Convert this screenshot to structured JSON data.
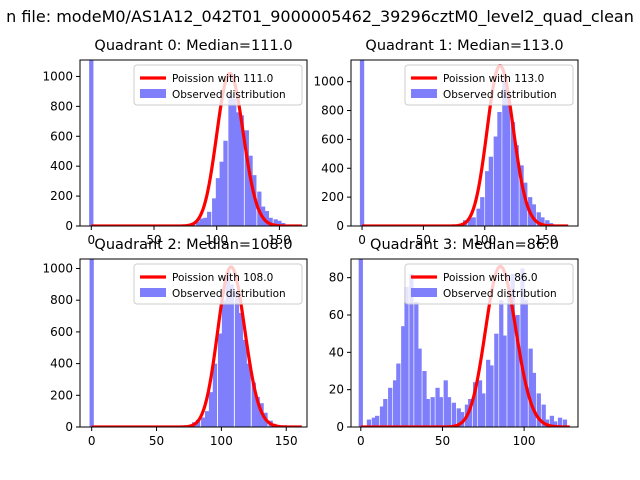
{
  "figure": {
    "suptitle": "n file: modeM0/AS1A12_042T01_9000005462_39296cztM0_level2_quad_clean"
  },
  "colors": {
    "hist": "#7f7ffc",
    "poisson": "#ff0000",
    "axes": "#000000"
  },
  "chart_data": [
    {
      "type": "bar",
      "title": "Quadrant 0: Median=111.0",
      "xlim": [
        -9,
        172
      ],
      "ylim": [
        0,
        1110
      ],
      "xticks": [
        0,
        50,
        100,
        150
      ],
      "yticks": [
        0,
        200,
        400,
        600,
        800,
        1000
      ],
      "legend": {
        "position": "top-right",
        "line_label": "Poission with 111.0",
        "bar_label": "Observed distribution"
      },
      "bin_width": 3.4,
      "bins": [
        {
          "x": 0,
          "y": 1110
        },
        {
          "x": 75,
          "y": 5
        },
        {
          "x": 78,
          "y": 8
        },
        {
          "x": 81,
          "y": 12
        },
        {
          "x": 85,
          "y": 30
        },
        {
          "x": 88,
          "y": 50
        },
        {
          "x": 91,
          "y": 55
        },
        {
          "x": 94,
          "y": 95
        },
        {
          "x": 98,
          "y": 185
        },
        {
          "x": 101,
          "y": 320
        },
        {
          "x": 104,
          "y": 430
        },
        {
          "x": 107,
          "y": 570
        },
        {
          "x": 111,
          "y": 880
        },
        {
          "x": 114,
          "y": 850
        },
        {
          "x": 117,
          "y": 760
        },
        {
          "x": 120,
          "y": 740
        },
        {
          "x": 124,
          "y": 640
        },
        {
          "x": 127,
          "y": 470
        },
        {
          "x": 130,
          "y": 340
        },
        {
          "x": 134,
          "y": 230
        },
        {
          "x": 137,
          "y": 130
        },
        {
          "x": 140,
          "y": 100
        },
        {
          "x": 143,
          "y": 55
        },
        {
          "x": 147,
          "y": 45
        },
        {
          "x": 150,
          "y": 35
        },
        {
          "x": 153,
          "y": 20
        },
        {
          "x": 156,
          "y": 8
        },
        {
          "x": 160,
          "y": 4
        },
        {
          "x": 163,
          "y": 2
        }
      ],
      "poisson_mean": 111.0,
      "poisson_scale": 1020,
      "poisson_xrange": [
        0,
        168
      ]
    },
    {
      "type": "bar",
      "title": "Quadrant 1: Median=113.0",
      "xlim": [
        -9,
        176
      ],
      "ylim": [
        0,
        1150
      ],
      "xticks": [
        0,
        50,
        100,
        150
      ],
      "yticks": [
        0,
        200,
        400,
        600,
        800,
        1000
      ],
      "legend": {
        "position": "top-right",
        "line_label": "Poission with 113.0",
        "bar_label": "Observed distribution"
      },
      "bin_width": 3.5,
      "bins": [
        {
          "x": 0,
          "y": 1150
        },
        {
          "x": 78,
          "y": 5
        },
        {
          "x": 81,
          "y": 10
        },
        {
          "x": 84,
          "y": 40
        },
        {
          "x": 88,
          "y": 55
        },
        {
          "x": 91,
          "y": 60
        },
        {
          "x": 95,
          "y": 120
        },
        {
          "x": 98,
          "y": 200
        },
        {
          "x": 102,
          "y": 380
        },
        {
          "x": 105,
          "y": 480
        },
        {
          "x": 109,
          "y": 620
        },
        {
          "x": 112,
          "y": 790
        },
        {
          "x": 116,
          "y": 1000
        },
        {
          "x": 119,
          "y": 920
        },
        {
          "x": 123,
          "y": 720
        },
        {
          "x": 126,
          "y": 560
        },
        {
          "x": 130,
          "y": 420
        },
        {
          "x": 133,
          "y": 300
        },
        {
          "x": 137,
          "y": 200
        },
        {
          "x": 140,
          "y": 150
        },
        {
          "x": 144,
          "y": 95
        },
        {
          "x": 147,
          "y": 60
        },
        {
          "x": 151,
          "y": 40
        },
        {
          "x": 154,
          "y": 20
        },
        {
          "x": 158,
          "y": 8
        },
        {
          "x": 161,
          "y": 3
        }
      ],
      "poisson_mean": 113.0,
      "poisson_scale": 1110,
      "poisson_xrange": [
        0,
        168
      ]
    },
    {
      "type": "bar",
      "title": "Quadrant 2: Median=108.0",
      "xlim": [
        -9,
        166
      ],
      "ylim": [
        0,
        1060
      ],
      "xticks": [
        0,
        50,
        100,
        150
      ],
      "yticks": [
        0,
        200,
        400,
        600,
        800,
        1000
      ],
      "legend": {
        "position": "top-right",
        "line_label": "Poission with 108.0",
        "bar_label": "Observed distribution"
      },
      "bin_width": 3.3,
      "bins": [
        {
          "x": 0,
          "y": 1060
        },
        {
          "x": 72,
          "y": 5
        },
        {
          "x": 76,
          "y": 10
        },
        {
          "x": 79,
          "y": 30
        },
        {
          "x": 82,
          "y": 45
        },
        {
          "x": 86,
          "y": 60
        },
        {
          "x": 89,
          "y": 100
        },
        {
          "x": 92,
          "y": 220
        },
        {
          "x": 95,
          "y": 400
        },
        {
          "x": 99,
          "y": 590
        },
        {
          "x": 102,
          "y": 800
        },
        {
          "x": 105,
          "y": 980
        },
        {
          "x": 108,
          "y": 900
        },
        {
          "x": 112,
          "y": 850
        },
        {
          "x": 115,
          "y": 720
        },
        {
          "x": 118,
          "y": 550
        },
        {
          "x": 121,
          "y": 400
        },
        {
          "x": 125,
          "y": 280
        },
        {
          "x": 128,
          "y": 190
        },
        {
          "x": 131,
          "y": 150
        },
        {
          "x": 134,
          "y": 90
        },
        {
          "x": 138,
          "y": 40
        },
        {
          "x": 141,
          "y": 20
        },
        {
          "x": 144,
          "y": 8
        },
        {
          "x": 147,
          "y": 3
        }
      ],
      "poisson_mean": 108.0,
      "poisson_scale": 1010,
      "poisson_xrange": [
        0,
        162
      ]
    },
    {
      "type": "bar",
      "title": "Quadrant 3: Median=86.0",
      "xlim": [
        -6,
        133
      ],
      "ylim": [
        0,
        90
      ],
      "xticks": [
        0,
        50,
        100
      ],
      "yticks": [
        0,
        20,
        40,
        60,
        80
      ],
      "legend": {
        "position": "top-right",
        "line_label": "Poission with 86.0",
        "bar_label": "Observed distribution"
      },
      "bin_width": 2.6,
      "bins": [
        {
          "x": 0,
          "y": 90
        },
        {
          "x": 5,
          "y": 4
        },
        {
          "x": 8,
          "y": 5
        },
        {
          "x": 10,
          "y": 6
        },
        {
          "x": 13,
          "y": 11
        },
        {
          "x": 15,
          "y": 15
        },
        {
          "x": 18,
          "y": 21
        },
        {
          "x": 21,
          "y": 25
        },
        {
          "x": 23,
          "y": 34
        },
        {
          "x": 26,
          "y": 54
        },
        {
          "x": 28,
          "y": 75
        },
        {
          "x": 31,
          "y": 82
        },
        {
          "x": 34,
          "y": 67
        },
        {
          "x": 36,
          "y": 42
        },
        {
          "x": 39,
          "y": 30
        },
        {
          "x": 41,
          "y": 15
        },
        {
          "x": 44,
          "y": 16
        },
        {
          "x": 47,
          "y": 21
        },
        {
          "x": 49,
          "y": 16
        },
        {
          "x": 52,
          "y": 25
        },
        {
          "x": 54,
          "y": 16
        },
        {
          "x": 57,
          "y": 13
        },
        {
          "x": 60,
          "y": 10
        },
        {
          "x": 62,
          "y": 8
        },
        {
          "x": 65,
          "y": 12
        },
        {
          "x": 67,
          "y": 15
        },
        {
          "x": 70,
          "y": 24
        },
        {
          "x": 73,
          "y": 25
        },
        {
          "x": 75,
          "y": 18
        },
        {
          "x": 78,
          "y": 36
        },
        {
          "x": 80,
          "y": 33
        },
        {
          "x": 83,
          "y": 50
        },
        {
          "x": 86,
          "y": 68
        },
        {
          "x": 88,
          "y": 49
        },
        {
          "x": 91,
          "y": 72
        },
        {
          "x": 93,
          "y": 82
        },
        {
          "x": 96,
          "y": 60
        },
        {
          "x": 99,
          "y": 85
        },
        {
          "x": 101,
          "y": 68
        },
        {
          "x": 104,
          "y": 42
        },
        {
          "x": 106,
          "y": 29
        },
        {
          "x": 109,
          "y": 18
        },
        {
          "x": 112,
          "y": 12
        },
        {
          "x": 114,
          "y": 4
        },
        {
          "x": 117,
          "y": 6
        },
        {
          "x": 119,
          "y": 3
        },
        {
          "x": 122,
          "y": 5
        },
        {
          "x": 125,
          "y": 4
        }
      ],
      "poisson_mean": 86.0,
      "poisson_scale": 86,
      "poisson_xrange": [
        0,
        128
      ]
    }
  ]
}
